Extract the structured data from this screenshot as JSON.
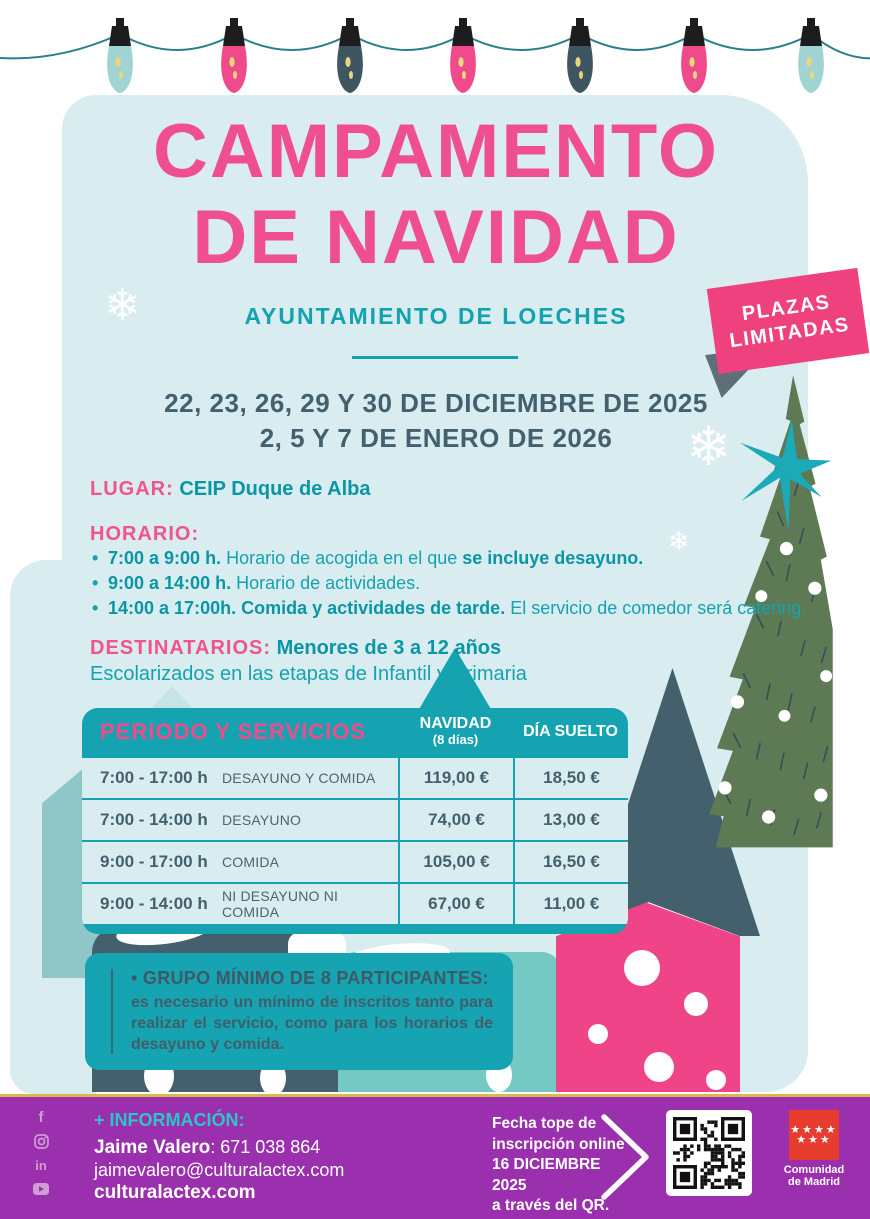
{
  "garland": {
    "bulb_colors": [
      "#9fd4d2",
      "#f0498c",
      "#3e5562",
      "#f0498c",
      "#3e5562",
      "#f0498c",
      "#9fd4d2"
    ]
  },
  "header": {
    "title_line1": "CAMPAMENTO",
    "title_line2": "DE NAVIDAD",
    "subtitle": "AYUNTAMIENTO DE LOECHES",
    "badge_line1": "PLAZAS",
    "badge_line2": "LIMITADAS",
    "dates_line1": "22, 23, 26, 29 Y 30 DE DICIEMBRE DE 2025",
    "dates_line2": "2, 5 Y 7 DE ENERO DE 2026"
  },
  "details": {
    "lugar_label": "LUGAR:",
    "lugar_value": "CEIP Duque de Alba",
    "horario_label": "HORARIO:",
    "horario_items": [
      {
        "time": "7:00 a 9:00 h.",
        "normal": " Horario de acogida en el que ",
        "bold": "se incluye desayuno.",
        "normal2": ""
      },
      {
        "time": "9:00 a 14:00 h.",
        "normal": " Horario de actividades.",
        "bold": "",
        "normal2": ""
      },
      {
        "time": "14:00 a 17:00h.",
        "normal": "",
        "bold": " Comida y actividades de tarde.",
        "normal2": " El servicio de comedor será catering."
      }
    ],
    "destinatarios_label": "DESTINATARIOS:",
    "destinatarios_value": "Menores de 3 a 12 años",
    "destinatarios_line2": "Escolarizados en las etapas de Infantil y Primaria"
  },
  "price_table": {
    "col1_header": "PERIODO Y SERVICIOS",
    "col2_header": "NAVIDAD",
    "col2_subheader": "(8 días)",
    "col3_header": "DÍA SUELTO",
    "rows": [
      {
        "time": "7:00 - 17:00 h",
        "service": "DESAYUNO Y COMIDA",
        "navidad": "119,00 €",
        "dia_suelto": "18,50 €"
      },
      {
        "time": "7:00 - 14:00 h",
        "service": "DESAYUNO",
        "navidad": "74,00 €",
        "dia_suelto": "13,00 €"
      },
      {
        "time": "9:00 - 17:00 h",
        "service": "COMIDA",
        "navidad": "105,00 €",
        "dia_suelto": "16,50 €"
      },
      {
        "time": "9:00 - 14:00 h",
        "service": "NI DESAYUNO NI COMIDA",
        "navidad": "67,00 €",
        "dia_suelto": "11,00 €"
      }
    ]
  },
  "note_box": {
    "title": "• GRUPO MÍNIMO DE 8 PARTICIPANTES:",
    "body": "es necesario un mínimo de inscritos tanto para realizar el servicio, como para los horarios de desayuno y comida."
  },
  "footer": {
    "info_label": "+ INFORMACIÓN:",
    "contact_name": "Jaime Valero",
    "contact_phone": ": 671 038 864",
    "contact_email": "jaimevalero@culturalactex.com",
    "website": "culturalactex.com",
    "deadline_line1": "Fecha tope de",
    "deadline_line2": "inscripción online",
    "deadline_line3": "16 DICIEMBRE 2025",
    "deadline_line4": "a través del QR.",
    "cam_logo_line1": "Comunidad",
    "cam_logo_line2": "de Madrid",
    "social_icons": [
      "facebook",
      "instagram",
      "linkedin",
      "youtube"
    ]
  },
  "colors": {
    "title_pink": "#ef4f90",
    "badge_pink": "#f0417f",
    "teal": "#14a3ae",
    "slate": "#42606e",
    "card_bg": "#d9ecf0",
    "footer_purple": "#9b30ae",
    "gold_line": "#d9b945",
    "tree_green": "#5d7a55",
    "star_teal": "#1ca9b8",
    "cam_red": "#e63d2f"
  }
}
